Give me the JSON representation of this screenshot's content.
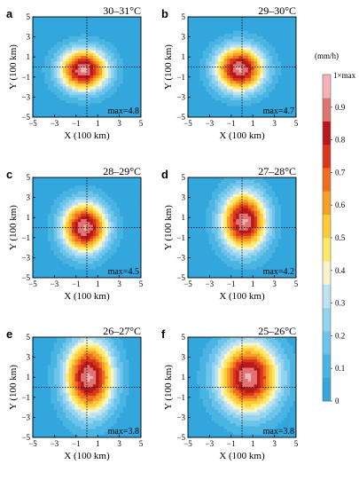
{
  "chart_data": {
    "type": "heatmap",
    "unit_label": "(mm/h)",
    "colorbar": {
      "top_label": "1×max",
      "ticks": [
        "0.9",
        "0.8",
        "0.7",
        "0.6",
        "0.5",
        "0.4",
        "0.3",
        "0.2",
        "0.1",
        "0"
      ],
      "tick_values": [
        0.9,
        0.8,
        0.7,
        0.6,
        0.5,
        0.4,
        0.3,
        0.2,
        0.1,
        0
      ],
      "colors": [
        "#33a7dd",
        "#4ab4e3",
        "#6cc4ea",
        "#92d3ef",
        "#bde2f1",
        "#f5f4cc",
        "#ffe96a",
        "#ffcb3a",
        "#f7a026",
        "#ee6d1e",
        "#d9371c",
        "#b8181b",
        "#e07474",
        "#f3b3b7"
      ]
    },
    "x_tick_labels": [
      "−5",
      "−3",
      "−1",
      "1",
      "3",
      "5"
    ],
    "y_tick_labels": [
      "5",
      "3",
      "1",
      "−1",
      "−3",
      "−5"
    ],
    "xlabel": "X (100 km)",
    "ylabel": "Y (100 km)",
    "xlim": [
      -5,
      5
    ],
    "ylim": [
      -5,
      5
    ],
    "panels": [
      {
        "label": "a",
        "title": "30–31°C",
        "max_text": "max=4.8",
        "center": [
          -0.3,
          -0.3
        ],
        "spread_x": 1.6,
        "spread_y": 1.5
      },
      {
        "label": "b",
        "title": "29–30°C",
        "max_text": "max=4.7",
        "center": [
          -0.2,
          -0.2
        ],
        "spread_x": 1.6,
        "spread_y": 1.6
      },
      {
        "label": "c",
        "title": "28–29°C",
        "max_text": "max=4.5",
        "center": [
          -0.2,
          0.0
        ],
        "spread_x": 1.5,
        "spread_y": 1.8
      },
      {
        "label": "d",
        "title": "27–28°C",
        "max_text": "max=4.2",
        "center": [
          0.2,
          0.6
        ],
        "spread_x": 1.5,
        "spread_y": 2.1
      },
      {
        "label": "e",
        "title": "26–27°C",
        "max_text": "max=3.8",
        "center": [
          0.2,
          1.0
        ],
        "spread_x": 1.6,
        "spread_y": 2.6
      },
      {
        "label": "f",
        "title": "25–26°C",
        "max_text": "max=3.8",
        "center": [
          0.6,
          1.0
        ],
        "spread_x": 2.0,
        "spread_y": 2.5
      }
    ]
  }
}
